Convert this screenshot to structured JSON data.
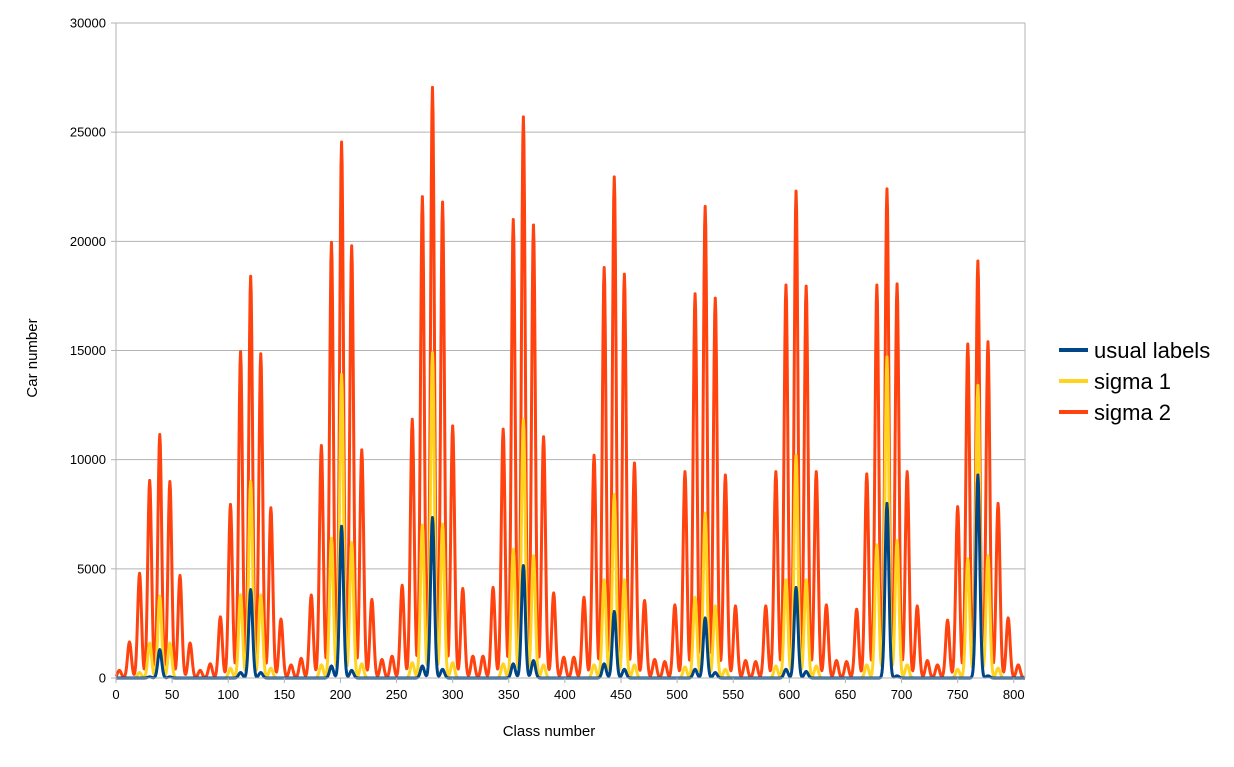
{
  "chart_data": {
    "type": "line",
    "title": "",
    "xlabel": "Class number",
    "ylabel": "Car number",
    "xlim": [
      0,
      810
    ],
    "ylim": [
      0,
      30000
    ],
    "x_ticks": [
      0,
      50,
      100,
      150,
      200,
      250,
      300,
      350,
      400,
      450,
      500,
      550,
      600,
      650,
      700,
      750,
      800
    ],
    "y_ticks": [
      0,
      5000,
      10000,
      15000,
      20000,
      25000,
      30000
    ],
    "grid": "horizontal",
    "legend": "right",
    "series": [
      {
        "name": "sigma 2",
        "color": "#ff420e",
        "peaks": [
          [
            3,
            350
          ],
          [
            12,
            1650
          ],
          [
            21,
            4800
          ],
          [
            30,
            9050
          ],
          [
            39,
            11150
          ],
          [
            48,
            9000
          ],
          [
            57,
            4700
          ],
          [
            66,
            1600
          ],
          [
            75,
            350
          ],
          [
            84,
            650
          ],
          [
            93,
            2800
          ],
          [
            102,
            7950
          ],
          [
            111,
            14950
          ],
          [
            120,
            18400
          ],
          [
            129,
            14850
          ],
          [
            138,
            7800
          ],
          [
            147,
            2700
          ],
          [
            156,
            600
          ],
          [
            165,
            900
          ],
          [
            174,
            3800
          ],
          [
            183,
            10650
          ],
          [
            192,
            19950
          ],
          [
            201,
            24550
          ],
          [
            210,
            19800
          ],
          [
            219,
            10450
          ],
          [
            228,
            3600
          ],
          [
            237,
            850
          ],
          [
            246,
            1000
          ],
          [
            255,
            4250
          ],
          [
            264,
            11850
          ],
          [
            273,
            22050
          ],
          [
            282,
            27050
          ],
          [
            291,
            21800
          ],
          [
            300,
            11550
          ],
          [
            309,
            4100
          ],
          [
            318,
            1000
          ],
          [
            327,
            1000
          ],
          [
            336,
            4150
          ],
          [
            345,
            11400
          ],
          [
            354,
            21000
          ],
          [
            363,
            25700
          ],
          [
            372,
            20750
          ],
          [
            381,
            11050
          ],
          [
            390,
            3900
          ],
          [
            399,
            950
          ],
          [
            408,
            950
          ],
          [
            417,
            3700
          ],
          [
            426,
            10200
          ],
          [
            435,
            18800
          ],
          [
            444,
            22950
          ],
          [
            453,
            18500
          ],
          [
            462,
            9850
          ],
          [
            471,
            3550
          ],
          [
            480,
            850
          ],
          [
            489,
            750
          ],
          [
            498,
            3350
          ],
          [
            507,
            9450
          ],
          [
            516,
            17600
          ],
          [
            525,
            21600
          ],
          [
            534,
            17400
          ],
          [
            543,
            9300
          ],
          [
            552,
            3300
          ],
          [
            561,
            800
          ],
          [
            570,
            750
          ],
          [
            579,
            3300
          ],
          [
            588,
            9450
          ],
          [
            597,
            18000
          ],
          [
            606,
            22300
          ],
          [
            615,
            17950
          ],
          [
            624,
            9450
          ],
          [
            633,
            3350
          ],
          [
            642,
            800
          ],
          [
            651,
            750
          ],
          [
            660,
            3150
          ],
          [
            669,
            9350
          ],
          [
            678,
            18000
          ],
          [
            687,
            22400
          ],
          [
            696,
            18050
          ],
          [
            705,
            9450
          ],
          [
            714,
            3300
          ],
          [
            723,
            800
          ],
          [
            732,
            600
          ],
          [
            741,
            2650
          ],
          [
            750,
            7850
          ],
          [
            759,
            15300
          ],
          [
            768,
            19100
          ],
          [
            777,
            15400
          ],
          [
            786,
            8000
          ],
          [
            795,
            2750
          ],
          [
            804,
            600
          ]
        ]
      },
      {
        "name": "sigma 1",
        "color": "#ffd320",
        "peaks": [
          [
            21,
            250
          ],
          [
            30,
            1600
          ],
          [
            39,
            3750
          ],
          [
            48,
            1600
          ],
          [
            102,
            450
          ],
          [
            111,
            3800
          ],
          [
            120,
            9000
          ],
          [
            129,
            3800
          ],
          [
            138,
            450
          ],
          [
            183,
            600
          ],
          [
            192,
            6400
          ],
          [
            201,
            13900
          ],
          [
            210,
            6200
          ],
          [
            219,
            650
          ],
          [
            264,
            700
          ],
          [
            273,
            7000
          ],
          [
            282,
            14900
          ],
          [
            291,
            7050
          ],
          [
            300,
            700
          ],
          [
            345,
            650
          ],
          [
            354,
            5900
          ],
          [
            363,
            11850
          ],
          [
            372,
            5600
          ],
          [
            381,
            600
          ],
          [
            426,
            600
          ],
          [
            435,
            4500
          ],
          [
            444,
            8400
          ],
          [
            453,
            4500
          ],
          [
            462,
            600
          ],
          [
            507,
            500
          ],
          [
            516,
            3700
          ],
          [
            525,
            7550
          ],
          [
            534,
            3300
          ],
          [
            543,
            400
          ],
          [
            588,
            550
          ],
          [
            597,
            4500
          ],
          [
            606,
            10200
          ],
          [
            615,
            4500
          ],
          [
            624,
            550
          ],
          [
            669,
            600
          ],
          [
            678,
            6100
          ],
          [
            687,
            14700
          ],
          [
            696,
            6300
          ],
          [
            705,
            600
          ],
          [
            750,
            400
          ],
          [
            759,
            5450
          ],
          [
            768,
            13400
          ],
          [
            777,
            5600
          ],
          [
            786,
            450
          ]
        ]
      },
      {
        "name": "usual labels",
        "color": "#004586",
        "peaks": [
          [
            30,
            50
          ],
          [
            39,
            1300
          ],
          [
            48,
            50
          ],
          [
            111,
            250
          ],
          [
            120,
            4050
          ],
          [
            129,
            250
          ],
          [
            192,
            550
          ],
          [
            201,
            6950
          ],
          [
            210,
            350
          ],
          [
            273,
            550
          ],
          [
            282,
            7350
          ],
          [
            291,
            400
          ],
          [
            354,
            650
          ],
          [
            363,
            5150
          ],
          [
            372,
            800
          ],
          [
            435,
            650
          ],
          [
            444,
            3050
          ],
          [
            453,
            400
          ],
          [
            516,
            400
          ],
          [
            525,
            2750
          ],
          [
            534,
            250
          ],
          [
            597,
            400
          ],
          [
            606,
            4150
          ],
          [
            615,
            300
          ],
          [
            687,
            8000
          ],
          [
            696,
            100
          ],
          [
            768,
            9300
          ],
          [
            777,
            100
          ]
        ]
      }
    ]
  }
}
